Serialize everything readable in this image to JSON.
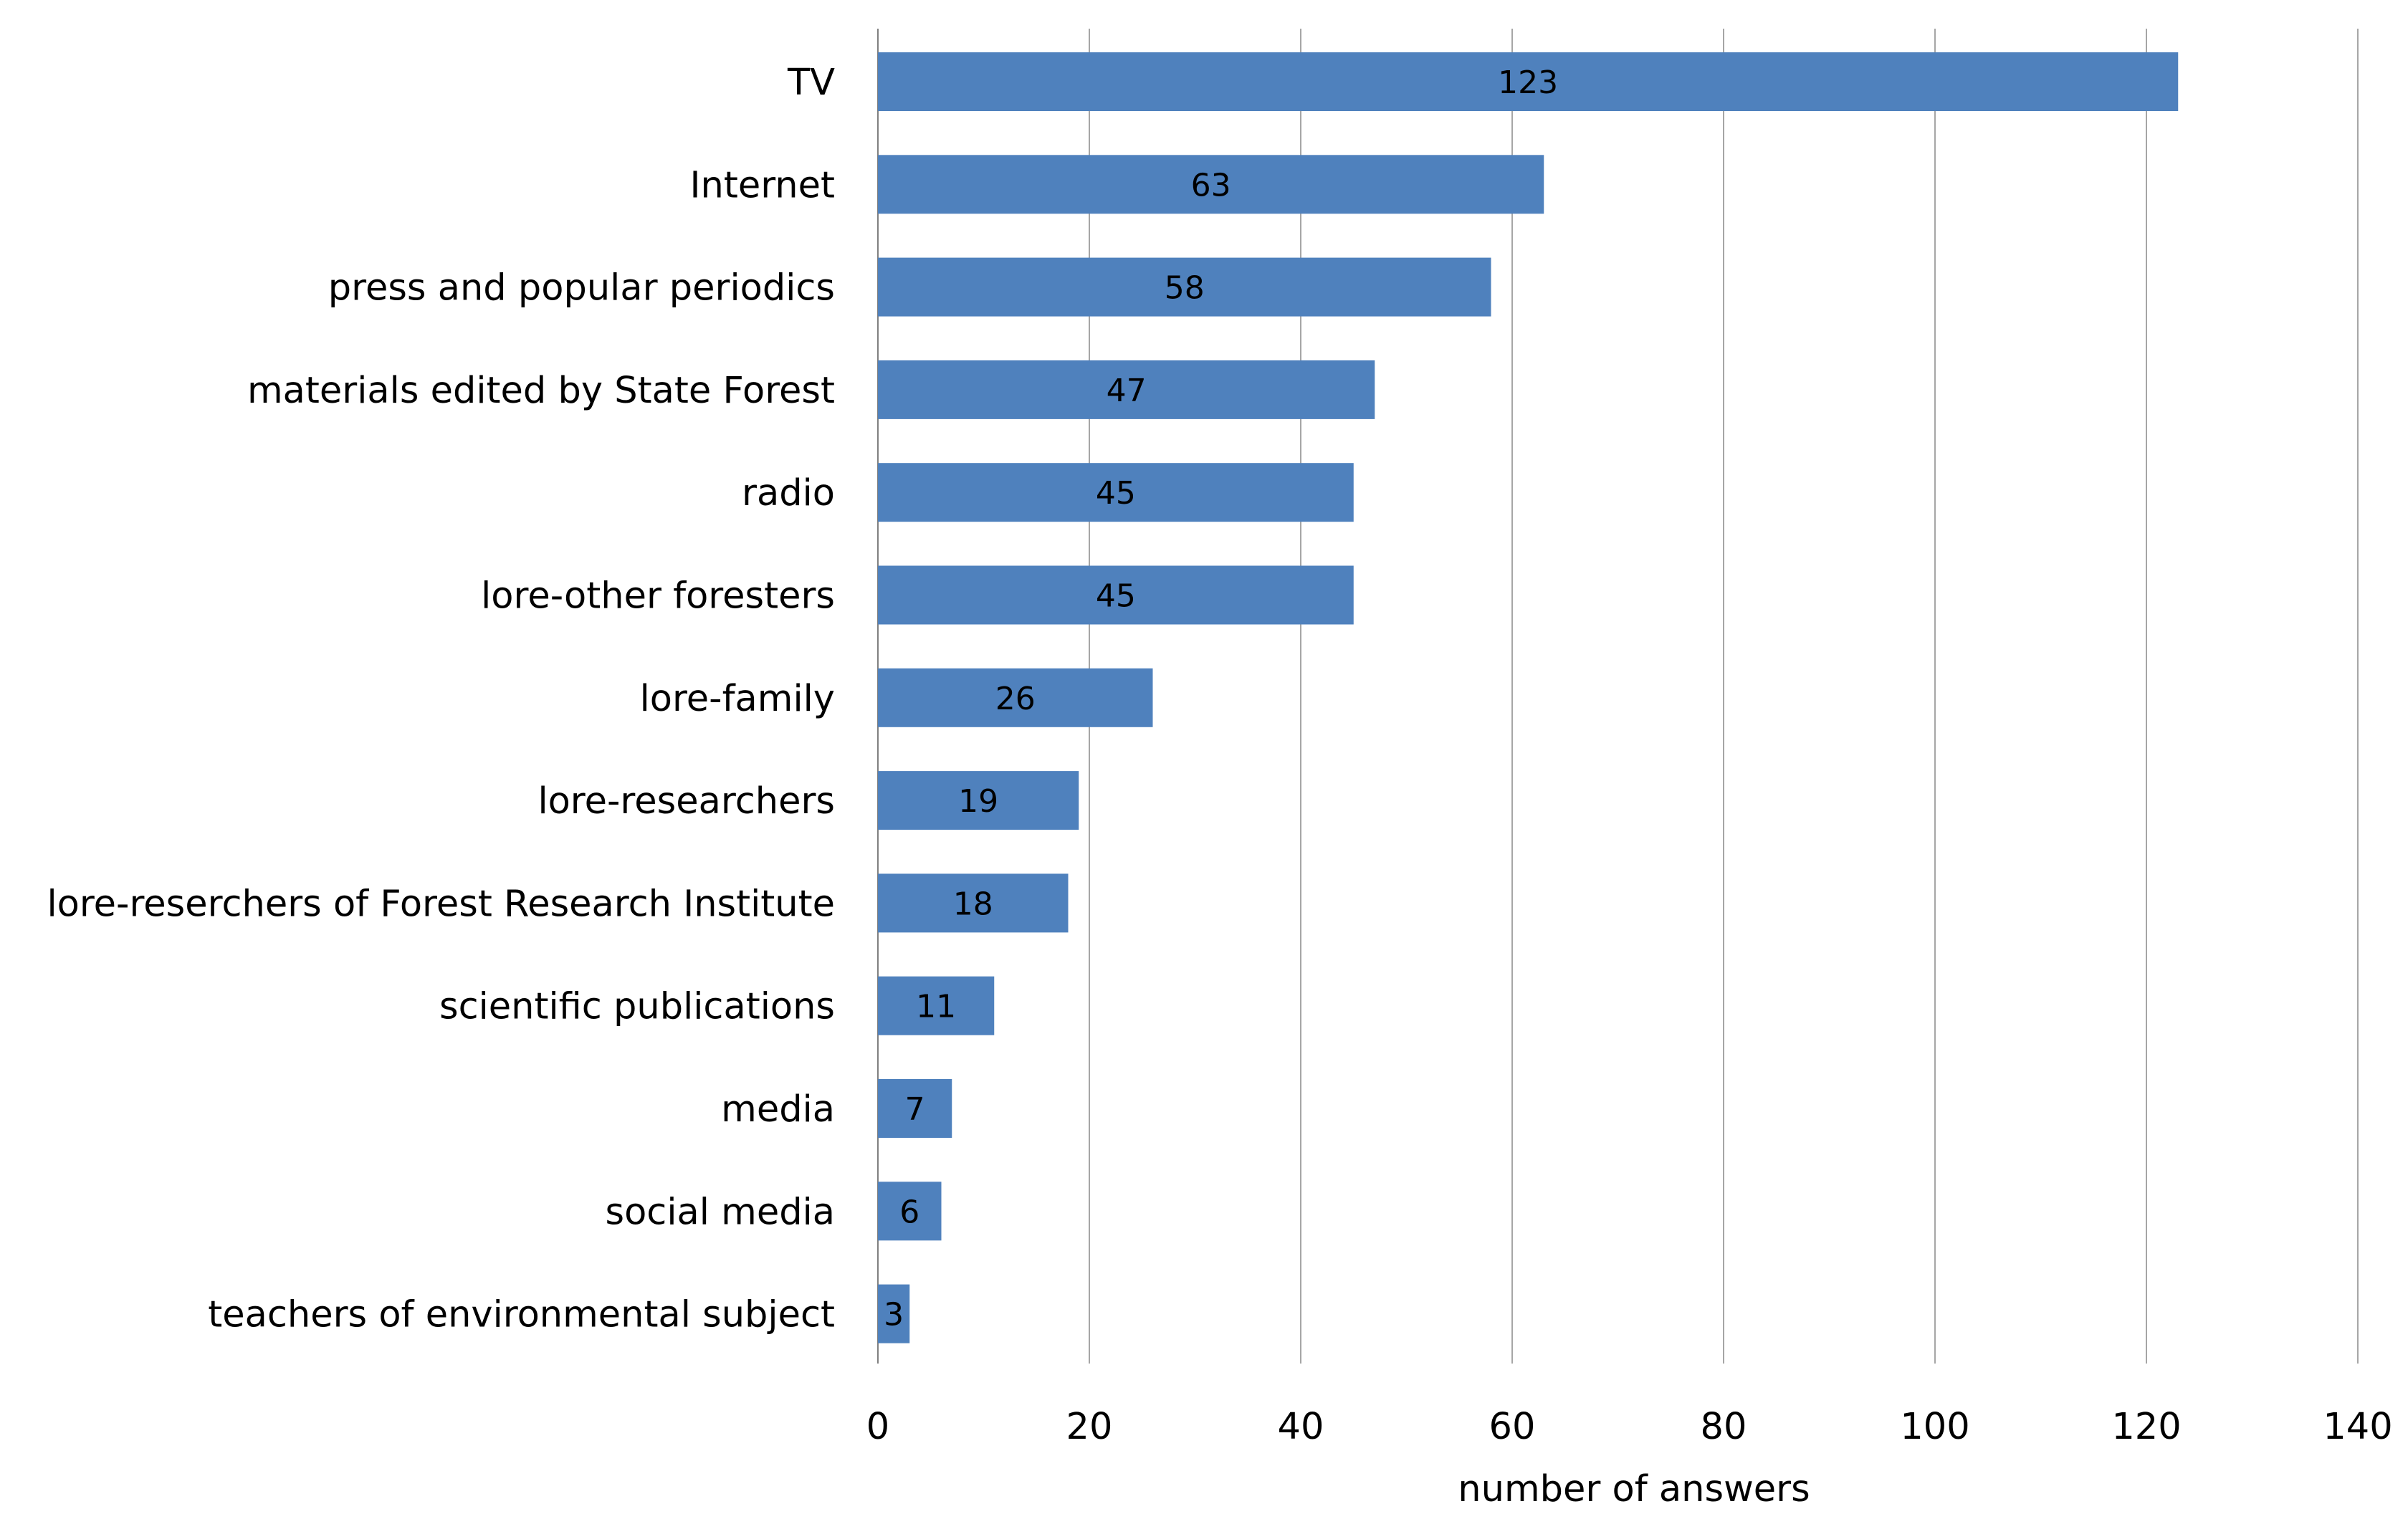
{
  "chart_data": {
    "type": "bar",
    "orientation": "horizontal",
    "title": "",
    "xlabel": "number of answers",
    "ylabel": "",
    "xlim": [
      0,
      140
    ],
    "x_ticks": [
      0,
      20,
      40,
      60,
      80,
      100,
      120,
      140
    ],
    "grid": "vertical",
    "legend": "none",
    "bar_color": "#4F81BD",
    "grid_color": "#A6A6A6",
    "categories": [
      "TV",
      "Internet",
      "press and popular periodics",
      "materials edited by  State Forest",
      "radio",
      "lore-other foresters",
      "lore-family",
      "lore-researchers",
      "lore-reserchers of Forest Research Institute",
      "scientific publications",
      "media",
      "social media",
      "teachers of environmental subject"
    ],
    "values": [
      123,
      63,
      58,
      47,
      45,
      45,
      26,
      19,
      18,
      11,
      7,
      6,
      3
    ]
  }
}
